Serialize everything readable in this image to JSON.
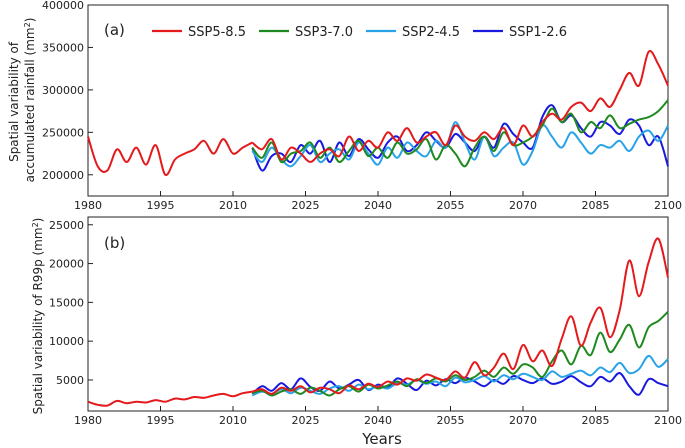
{
  "chart_data": [
    {
      "type": "line",
      "panel_label": "(a)",
      "ylabel_line1": "Spatial variability of",
      "ylabel_line2_prefix": "accumulated rainfall (mm",
      "ylabel_line2_sup": "2",
      "ylabel_line2_suffix": ")",
      "xlabel": "",
      "xlim": [
        1980,
        2100
      ],
      "ylim": [
        175000,
        400000
      ],
      "xticks": [
        1980,
        1995,
        2010,
        2025,
        2040,
        2055,
        2070,
        2085,
        2100
      ],
      "yticks": [
        200000,
        250000,
        300000,
        350000,
        400000
      ],
      "x_hist": [
        1980,
        1982,
        1984,
        1986,
        1988,
        1990,
        1992,
        1994,
        1996,
        1998,
        2000,
        2002,
        2004,
        2006,
        2008,
        2010,
        2012,
        2014
      ],
      "x_future": [
        2014,
        2016,
        2018,
        2020,
        2022,
        2024,
        2026,
        2028,
        2030,
        2032,
        2034,
        2036,
        2038,
        2040,
        2042,
        2044,
        2046,
        2048,
        2050,
        2052,
        2054,
        2056,
        2058,
        2060,
        2062,
        2064,
        2066,
        2068,
        2070,
        2072,
        2074,
        2076,
        2078,
        2080,
        2082,
        2084,
        2086,
        2088,
        2090,
        2092,
        2094,
        2096,
        2098,
        2100
      ],
      "series": [
        {
          "name": "SSP5-8.5",
          "color": "#e41a1c",
          "hist_values": [
            245000,
            210000,
            205000,
            230000,
            215000,
            232000,
            212000,
            235000,
            200000,
            218000,
            225000,
            230000,
            240000,
            225000,
            242000,
            225000,
            232000,
            238000
          ],
          "values": [
            238000,
            230000,
            242000,
            218000,
            232000,
            225000,
            215000,
            225000,
            230000,
            222000,
            245000,
            228000,
            240000,
            232000,
            250000,
            240000,
            255000,
            238000,
            245000,
            250000,
            235000,
            258000,
            245000,
            240000,
            250000,
            242000,
            255000,
            235000,
            258000,
            245000,
            262000,
            272000,
            265000,
            280000,
            285000,
            275000,
            290000,
            280000,
            300000,
            320000,
            305000,
            345000,
            330000,
            305000
          ]
        },
        {
          "name": "SSP3-7.0",
          "color": "#1f8a1f",
          "values": [
            232000,
            220000,
            238000,
            215000,
            225000,
            228000,
            238000,
            220000,
            232000,
            215000,
            228000,
            240000,
            222000,
            232000,
            220000,
            238000,
            225000,
            230000,
            242000,
            218000,
            235000,
            225000,
            210000,
            232000,
            245000,
            228000,
            250000,
            235000,
            238000,
            245000,
            258000,
            278000,
            262000,
            272000,
            250000,
            262000,
            255000,
            270000,
            255000,
            260000,
            265000,
            268000,
            275000,
            288000
          ]
        },
        {
          "name": "SSP2-4.5",
          "color": "#29a3e8",
          "values": [
            228000,
            215000,
            232000,
            218000,
            210000,
            222000,
            235000,
            215000,
            225000,
            230000,
            218000,
            238000,
            225000,
            212000,
            232000,
            220000,
            238000,
            228000,
            222000,
            240000,
            232000,
            262000,
            238000,
            218000,
            245000,
            222000,
            232000,
            238000,
            212000,
            228000,
            258000,
            245000,
            232000,
            250000,
            238000,
            225000,
            235000,
            232000,
            240000,
            228000,
            245000,
            252000,
            240000,
            258000
          ]
        },
        {
          "name": "SSP1-2.6",
          "color": "#1a1adf",
          "values": [
            232000,
            205000,
            222000,
            225000,
            215000,
            235000,
            225000,
            240000,
            215000,
            238000,
            222000,
            242000,
            230000,
            220000,
            238000,
            245000,
            228000,
            235000,
            250000,
            240000,
            232000,
            248000,
            238000,
            228000,
            245000,
            232000,
            260000,
            248000,
            238000,
            232000,
            268000,
            282000,
            262000,
            270000,
            255000,
            245000,
            262000,
            258000,
            248000,
            265000,
            258000,
            235000,
            245000,
            210000
          ]
        }
      ],
      "legend": [
        "SSP5-8.5",
        "SSP3-7.0",
        "SSP2-4.5",
        "SSP1-2.6"
      ],
      "legend_location": "top"
    },
    {
      "type": "line",
      "panel_label": "(b)",
      "ylabel_prefix": "Spatial variability of R99p (mm",
      "ylabel_sup": "2",
      "ylabel_suffix": ")",
      "xlabel": "Years",
      "xlim": [
        1980,
        2100
      ],
      "ylim": [
        1000,
        26000
      ],
      "xticks": [
        1980,
        1995,
        2010,
        2025,
        2040,
        2055,
        2070,
        2085,
        2100
      ],
      "yticks": [
        5000,
        10000,
        15000,
        20000,
        25000
      ],
      "x_hist": [
        1980,
        1982,
        1984,
        1986,
        1988,
        1990,
        1992,
        1994,
        1996,
        1998,
        2000,
        2002,
        2004,
        2006,
        2008,
        2010,
        2012,
        2014
      ],
      "x_future": [
        2014,
        2016,
        2018,
        2020,
        2022,
        2024,
        2026,
        2028,
        2030,
        2032,
        2034,
        2036,
        2038,
        2040,
        2042,
        2044,
        2046,
        2048,
        2050,
        2052,
        2054,
        2056,
        2058,
        2060,
        2062,
        2064,
        2066,
        2068,
        2070,
        2072,
        2074,
        2076,
        2078,
        2080,
        2082,
        2084,
        2086,
        2088,
        2090,
        2092,
        2094,
        2096,
        2098,
        2100
      ],
      "series": [
        {
          "name": "SSP5-8.5",
          "color": "#e41a1c",
          "hist_values": [
            2200,
            1800,
            1700,
            2300,
            2000,
            2200,
            2100,
            2400,
            2200,
            2600,
            2500,
            2800,
            2700,
            3000,
            3200,
            2900,
            3300,
            3500
          ],
          "values": [
            3500,
            3800,
            3200,
            4000,
            3600,
            4200,
            3400,
            4000,
            3800,
            3300,
            4300,
            3800,
            4500,
            4100,
            4800,
            4400,
            5200,
            4900,
            5700,
            5300,
            5000,
            6100,
            5300,
            7300,
            5600,
            6600,
            8400,
            6400,
            9500,
            7400,
            8800,
            6800,
            10300,
            13200,
            9400,
            12400,
            14300,
            10500,
            14000,
            20400,
            15800,
            20200,
            23200,
            18200
          ]
        },
        {
          "name": "SSP3-7.0",
          "color": "#1f8a1f",
          "values": [
            3300,
            3600,
            3000,
            3500,
            3800,
            3200,
            4000,
            3600,
            3000,
            3800,
            4200,
            3500,
            4400,
            3900,
            4300,
            4800,
            4200,
            5100,
            4600,
            5200,
            4800,
            5600,
            5000,
            5400,
            6200,
            5400,
            6600,
            5800,
            7000,
            6600,
            5400,
            7400,
            8800,
            7000,
            9400,
            8200,
            11100,
            8600,
            10200,
            12100,
            9200,
            11800,
            12600,
            13800
          ]
        },
        {
          "name": "SSP2-4.5",
          "color": "#29a3e8",
          "values": [
            3000,
            3500,
            3200,
            3800,
            3300,
            4000,
            3600,
            3200,
            3900,
            4200,
            3600,
            4400,
            3800,
            4200,
            3900,
            4600,
            4400,
            5000,
            4500,
            4800,
            4200,
            5300,
            4700,
            5000,
            5500,
            4800,
            5600,
            5100,
            5800,
            5400,
            5000,
            6100,
            5400,
            5800,
            6200,
            5600,
            6600,
            6000,
            7200,
            5900,
            6400,
            8100,
            6700,
            7700
          ]
        },
        {
          "name": "SSP1-2.6",
          "color": "#1a1adf",
          "values": [
            3200,
            4200,
            3600,
            4600,
            3800,
            5200,
            4100,
            3600,
            4800,
            3900,
            4400,
            5000,
            3700,
            4400,
            4000,
            5200,
            4500,
            3700,
            4900,
            4300,
            5100,
            4600,
            5300,
            4800,
            4200,
            5000,
            4500,
            5500,
            5000,
            4600,
            5200,
            4500,
            4800,
            5500,
            4700,
            4200,
            5400,
            4800,
            5900,
            4200,
            3100,
            5100,
            4600,
            4200
          ]
        }
      ]
    }
  ]
}
